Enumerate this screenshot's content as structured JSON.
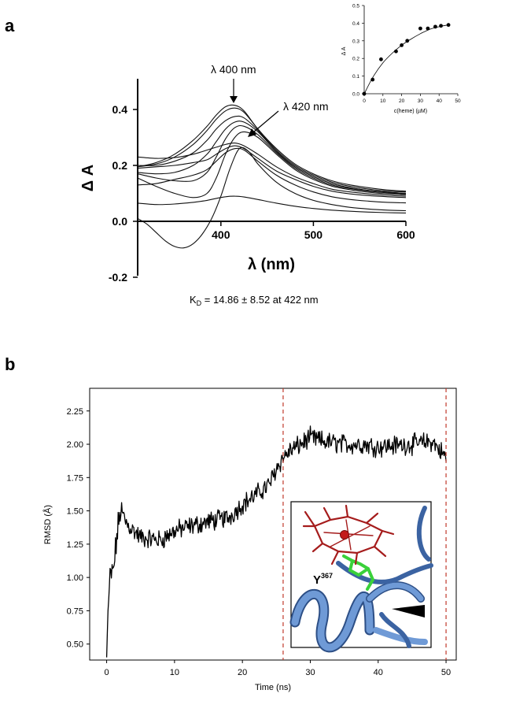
{
  "panels": {
    "a": "a",
    "b": "b"
  },
  "chart_data": [
    {
      "id": "spectra",
      "type": "line",
      "xlabel": "λ (nm)",
      "ylabel": "Δ A",
      "xlim": [
        310,
        600
      ],
      "ylim": [
        -0.2,
        0.5
      ],
      "xticks": [
        400,
        500,
        600
      ],
      "yticks": [
        -0.2,
        0.0,
        0.2,
        0.4
      ],
      "ytick_labels": [
        "-0.2",
        "0.0",
        "0.2",
        "0.4"
      ],
      "annotations": [
        {
          "text": "λ 400 nm",
          "points_to": [
            410,
            0.415
          ]
        },
        {
          "text": "λ 420 nm",
          "points_to": [
            422,
            0.31
          ]
        }
      ],
      "caption_main": "K",
      "caption_sub": "D",
      "caption_rest": " = 14.86 ± 8.52 at 422 nm",
      "series": [
        {
          "name": "s1",
          "x": [
            310,
            330,
            350,
            370,
            385,
            395,
            405,
            415,
            425,
            440,
            460,
            480,
            500,
            520,
            540,
            560,
            580,
            600
          ],
          "y": [
            0.195,
            0.21,
            0.24,
            0.29,
            0.34,
            0.38,
            0.41,
            0.415,
            0.395,
            0.33,
            0.26,
            0.205,
            0.17,
            0.145,
            0.13,
            0.12,
            0.112,
            0.108
          ]
        },
        {
          "name": "s2",
          "x": [
            310,
            330,
            350,
            370,
            385,
            395,
            405,
            415,
            425,
            440,
            460,
            480,
            500,
            520,
            540,
            560,
            580,
            600
          ],
          "y": [
            0.195,
            0.205,
            0.23,
            0.275,
            0.325,
            0.365,
            0.395,
            0.405,
            0.39,
            0.33,
            0.255,
            0.2,
            0.165,
            0.14,
            0.125,
            0.115,
            0.108,
            0.105
          ]
        },
        {
          "name": "s3",
          "x": [
            310,
            330,
            350,
            370,
            385,
            395,
            405,
            415,
            425,
            440,
            460,
            480,
            500,
            520,
            540,
            560,
            580,
            600
          ],
          "y": [
            0.2,
            0.2,
            0.215,
            0.245,
            0.29,
            0.33,
            0.36,
            0.375,
            0.37,
            0.325,
            0.25,
            0.195,
            0.16,
            0.135,
            0.12,
            0.11,
            0.104,
            0.1
          ]
        },
        {
          "name": "s4",
          "x": [
            310,
            330,
            350,
            370,
            385,
            395,
            405,
            415,
            425,
            440,
            460,
            480,
            500,
            520,
            540,
            560,
            580,
            600
          ],
          "y": [
            0.175,
            0.17,
            0.175,
            0.2,
            0.24,
            0.285,
            0.33,
            0.355,
            0.355,
            0.32,
            0.25,
            0.195,
            0.16,
            0.135,
            0.12,
            0.11,
            0.104,
            0.1
          ]
        },
        {
          "name": "s5",
          "x": [
            310,
            330,
            350,
            370,
            385,
            395,
            405,
            415,
            425,
            440,
            460,
            480,
            500,
            520,
            540,
            560,
            580,
            600
          ],
          "y": [
            0.17,
            0.155,
            0.145,
            0.145,
            0.175,
            0.23,
            0.295,
            0.335,
            0.34,
            0.31,
            0.245,
            0.19,
            0.155,
            0.13,
            0.117,
            0.108,
            0.102,
            0.098
          ]
        },
        {
          "name": "s6",
          "x": [
            310,
            330,
            350,
            370,
            385,
            395,
            405,
            415,
            425,
            440,
            460,
            480,
            500,
            520,
            540,
            560,
            580,
            600
          ],
          "y": [
            0.155,
            0.125,
            0.1,
            0.085,
            0.1,
            0.155,
            0.24,
            0.3,
            0.32,
            0.3,
            0.24,
            0.185,
            0.15,
            0.126,
            0.113,
            0.104,
            0.098,
            0.095
          ]
        },
        {
          "name": "s7",
          "x": [
            310,
            330,
            350,
            370,
            385,
            395,
            405,
            415,
            425,
            440,
            460,
            480,
            500,
            520,
            540,
            560,
            580,
            600
          ],
          "y": [
            0.23,
            0.225,
            0.228,
            0.24,
            0.255,
            0.265,
            0.275,
            0.28,
            0.27,
            0.24,
            0.195,
            0.16,
            0.135,
            0.115,
            0.105,
            0.098,
            0.093,
            0.09
          ]
        },
        {
          "name": "s8",
          "x": [
            310,
            330,
            350,
            370,
            385,
            395,
            405,
            415,
            425,
            440,
            460,
            480,
            500,
            520,
            540,
            560,
            580,
            600
          ],
          "y": [
            0.19,
            0.195,
            0.2,
            0.21,
            0.22,
            0.24,
            0.26,
            0.27,
            0.26,
            0.225,
            0.18,
            0.15,
            0.125,
            0.108,
            0.098,
            0.092,
            0.088,
            0.085
          ]
        },
        {
          "name": "s9",
          "x": [
            310,
            330,
            350,
            370,
            385,
            395,
            405,
            415,
            425,
            440,
            460,
            480,
            500,
            520,
            540,
            560,
            580,
            600
          ],
          "y": [
            0.13,
            0.135,
            0.15,
            0.165,
            0.185,
            0.215,
            0.245,
            0.26,
            0.255,
            0.215,
            0.165,
            0.13,
            0.105,
            0.088,
            0.078,
            0.072,
            0.068,
            0.066
          ]
        },
        {
          "name": "s10",
          "x": [
            310,
            330,
            350,
            370,
            385,
            395,
            405,
            415,
            425,
            440,
            460,
            480,
            500,
            520,
            540,
            560,
            580,
            600
          ],
          "y": [
            0.065,
            0.06,
            0.062,
            0.068,
            0.075,
            0.082,
            0.088,
            0.09,
            0.087,
            0.078,
            0.065,
            0.054,
            0.046,
            0.04,
            0.036,
            0.033,
            0.031,
            0.03
          ]
        },
        {
          "name": "s11",
          "x": [
            310,
            320,
            330,
            340,
            350,
            360,
            370,
            380,
            390,
            400,
            410,
            420,
            430,
            440,
            460,
            480,
            500,
            520,
            540,
            560,
            580,
            600
          ],
          "y": [
            0.01,
            -0.01,
            -0.04,
            -0.07,
            -0.09,
            -0.095,
            -0.08,
            -0.045,
            0.01,
            0.09,
            0.19,
            0.26,
            0.25,
            0.205,
            0.14,
            0.1,
            0.075,
            0.06,
            0.05,
            0.044,
            0.04,
            0.038
          ]
        }
      ]
    },
    {
      "id": "inset-binding",
      "type": "scatter",
      "xlabel": "c(heme) (µM)",
      "ylabel": "Δ A",
      "xlim": [
        0,
        50
      ],
      "ylim": [
        0,
        0.5
      ],
      "xticks": [
        0,
        10,
        20,
        30,
        40,
        50
      ],
      "yticks": [
        0.0,
        0.1,
        0.2,
        0.3,
        0.4,
        0.5
      ],
      "ytick_labels": [
        "0.0",
        "0.1",
        "0.2",
        "0.3",
        "0.4",
        "0.5"
      ],
      "points": {
        "x": [
          0,
          4.5,
          9,
          17,
          20,
          23,
          30,
          34,
          38,
          41,
          45
        ],
        "y": [
          0,
          0.08,
          0.195,
          0.24,
          0.275,
          0.3,
          0.37,
          0.37,
          0.38,
          0.385,
          0.39
        ]
      },
      "fit": {
        "x": [
          0,
          5,
          10,
          15,
          20,
          25,
          30,
          35,
          40,
          45
        ],
        "y": [
          0,
          0.1,
          0.175,
          0.23,
          0.275,
          0.31,
          0.34,
          0.365,
          0.38,
          0.39
        ]
      }
    },
    {
      "id": "rmsd",
      "type": "line",
      "xlabel": "Time (ns)",
      "ylabel": "RMSD (Å)",
      "xlim": [
        -2.5,
        51.5
      ],
      "ylim": [
        0.38,
        2.42
      ],
      "xticks": [
        0,
        10,
        20,
        30,
        40,
        50
      ],
      "yticks": [
        0.5,
        0.75,
        1.0,
        1.25,
        1.5,
        1.75,
        2.0,
        2.25
      ],
      "ytick_labels": [
        "0.50",
        "0.75",
        "1.00",
        "1.25",
        "1.50",
        "1.75",
        "2.00",
        "2.25"
      ],
      "vlines": [
        26,
        50
      ],
      "inset_label": "Y",
      "inset_label_sup": "367",
      "anchors": {
        "t": [
          0,
          0.2,
          0.5,
          1.0,
          1.5,
          2.0,
          2.5,
          3,
          5,
          8,
          10,
          12,
          15,
          18,
          20,
          22,
          24,
          25,
          26,
          27,
          28,
          30,
          32,
          35,
          38,
          40,
          42,
          45,
          48,
          50
        ],
        "v": [
          0.4,
          0.75,
          1.0,
          1.05,
          1.3,
          1.5,
          1.45,
          1.4,
          1.3,
          1.28,
          1.35,
          1.38,
          1.42,
          1.45,
          1.55,
          1.62,
          1.7,
          1.82,
          1.9,
          1.95,
          1.98,
          2.05,
          2.02,
          2.0,
          2.0,
          1.98,
          1.99,
          2.0,
          2.02,
          1.9
        ]
      }
    }
  ]
}
